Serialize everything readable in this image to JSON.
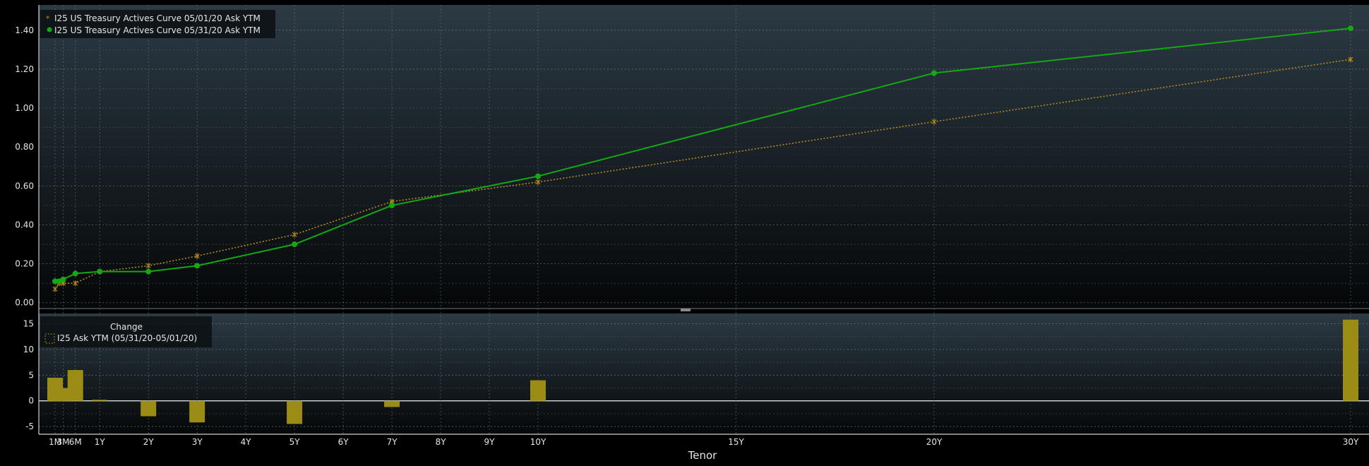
{
  "theme": {
    "background": "#000000",
    "panel_top": "#2c3a44",
    "panel_bottom": "#050708",
    "grid": "#6b7a82",
    "text": "#e6e6e6",
    "series1_color": "#b8891f",
    "series2_color": "#15a815",
    "bar_color": "#9a8c15"
  },
  "chart_data": [
    {
      "type": "line",
      "legend_placement": "top-left",
      "grid": true,
      "x_tick_labels": [
        "1M",
        "3M",
        "6M",
        "1Y",
        "2Y",
        "3Y",
        "4Y",
        "5Y",
        "6Y",
        "7Y",
        "8Y",
        "9Y",
        "10Y",
        "15Y",
        "20Y",
        "30Y"
      ],
      "xlabel": "Tenor",
      "ylabel": "",
      "y_tick_labels": [
        "0.00",
        "0.20",
        "0.40",
        "0.60",
        "0.80",
        "1.00",
        "1.20",
        "1.40"
      ],
      "ylim": [
        -0.03,
        1.53
      ],
      "x_tenors": [
        "1M",
        "2M",
        "3M",
        "6M",
        "1Y",
        "2Y",
        "3Y",
        "5Y",
        "7Y",
        "10Y",
        "20Y",
        "30Y"
      ],
      "series": [
        {
          "name": "I25 US Treasury Actives Curve 05/01/20 Ask YTM",
          "style": "dotted-star",
          "values": [
            0.07,
            0.1,
            0.1,
            0.1,
            0.16,
            0.19,
            0.24,
            0.35,
            0.52,
            0.62,
            0.93,
            1.25
          ]
        },
        {
          "name": "I25 US Treasury Actives Curve 05/31/20 Ask YTM",
          "style": "solid-dot",
          "values": [
            0.11,
            0.11,
            0.12,
            0.15,
            0.16,
            0.16,
            0.19,
            0.3,
            0.5,
            0.65,
            1.18,
            1.41
          ]
        }
      ]
    },
    {
      "type": "bar",
      "legend_title": "Change",
      "legend_placement": "top-left",
      "grid": true,
      "y_tick_labels": [
        "15",
        "10",
        "5",
        "0",
        "-5"
      ],
      "ylim": [
        -6.5,
        17
      ],
      "series": [
        {
          "name": "I25 Ask YTM (05/31/20-05/01/20)",
          "x_tenors": [
            "1M",
            "2M",
            "3M",
            "6M",
            "1Y",
            "2Y",
            "3Y",
            "5Y",
            "7Y",
            "10Y",
            "30Y"
          ],
          "values": [
            4.5,
            1.5,
            2.5,
            6.0,
            0.2,
            -3.0,
            -4.2,
            -4.5,
            -1.2,
            4.0,
            15.8
          ]
        }
      ]
    }
  ]
}
